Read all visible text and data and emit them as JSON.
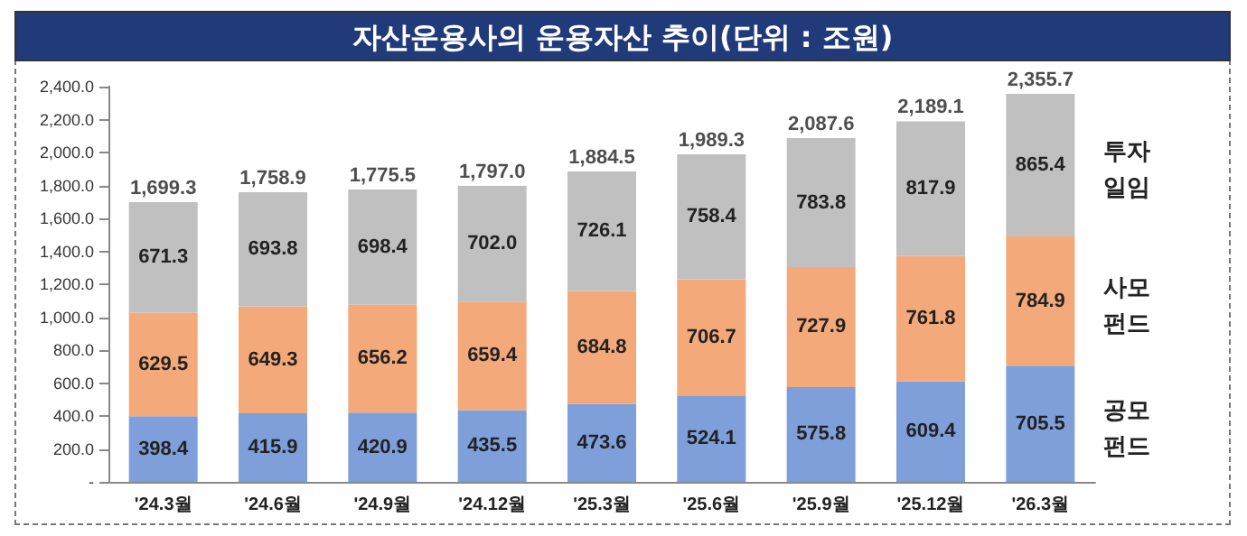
{
  "chart_data": {
    "type": "bar",
    "title": "자산운용사의 운용자산 추이(단위 : 조원)",
    "stacked": true,
    "data_labels": true,
    "grid": false,
    "legend": false,
    "categories": [
      "'24.3월",
      "'24.6월",
      "'24.9월",
      "'24.12월",
      "'25.3월",
      "'25.6월",
      "'25.9월",
      "'25.12월",
      "'26.3월"
    ],
    "series": [
      {
        "name": "공모펀드",
        "color": "#7f9fdb",
        "values": [
          398.4,
          415.9,
          420.9,
          435.5,
          473.6,
          524.1,
          575.8,
          609.4,
          705.5
        ]
      },
      {
        "name": "사모펀드",
        "color": "#f4a97a",
        "values": [
          629.5,
          649.3,
          656.2,
          659.4,
          684.8,
          706.7,
          727.9,
          761.8,
          784.9
        ]
      },
      {
        "name": "투자일임",
        "color": "#c0c0c0",
        "values": [
          671.3,
          693.8,
          698.4,
          702.0,
          726.1,
          758.4,
          783.8,
          817.9,
          865.4
        ],
        "value_labels": [
          "671.3",
          "693.8",
          "698.4",
          "702.0",
          "726.1",
          "758.4",
          "783.8",
          "817.9",
          "865.4"
        ]
      }
    ],
    "totals": [
      "1,699.3",
      "1,758.9",
      "1,775.5",
      "1,797.0",
      "1,884.5",
      "1,989.3",
      "2,087.6",
      "2,189.1",
      "2,355.7"
    ],
    "ylim": [
      0,
      2400
    ],
    "yticks": [
      {
        "value": 0,
        "label": "-"
      },
      {
        "value": 200,
        "label": "200.0"
      },
      {
        "value": 400,
        "label": "400.0"
      },
      {
        "value": 600,
        "label": "600.0"
      },
      {
        "value": 800,
        "label": "800.0"
      },
      {
        "value": 1000,
        "label": "1,000.0"
      },
      {
        "value": 1200,
        "label": "1,200.0"
      },
      {
        "value": 1400,
        "label": "1,400.0"
      },
      {
        "value": 1600,
        "label": "1,600.0"
      },
      {
        "value": 1800,
        "label": "1,800.0"
      },
      {
        "value": 2000,
        "label": "2,000.0"
      },
      {
        "value": 2200,
        "label": "2,200.0"
      },
      {
        "value": 2400,
        "label": "2,400.0"
      }
    ]
  }
}
